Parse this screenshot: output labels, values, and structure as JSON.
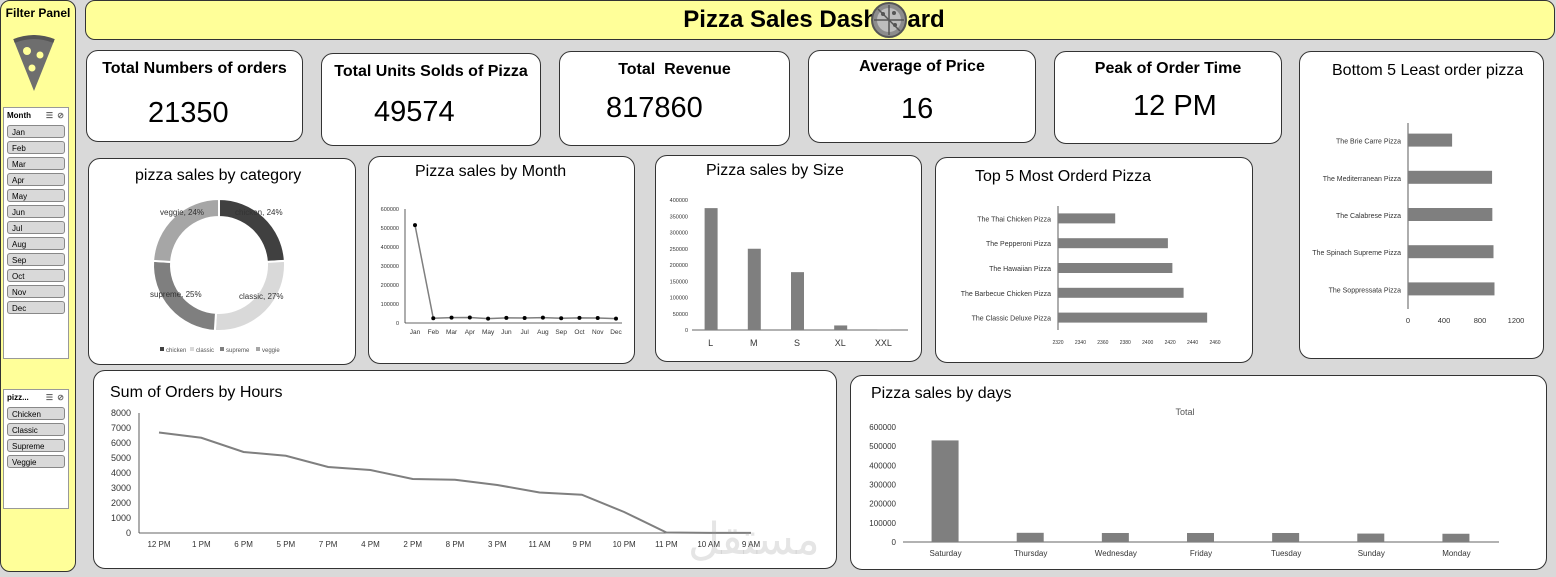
{
  "filter_panel": {
    "title": "Filter Panel",
    "icon": "pizza-slice-icon",
    "month_slicer": {
      "title": "Month",
      "items": [
        "Jan",
        "Feb",
        "Mar",
        "Apr",
        "May",
        "Jun",
        "Jul",
        "Aug",
        "Sep",
        "Oct",
        "Nov",
        "Dec"
      ]
    },
    "category_slicer": {
      "title": "pizz...",
      "items": [
        "Chicken",
        "Classic",
        "Supreme",
        "Veggie"
      ]
    }
  },
  "header": {
    "title": "Pizza Sales Dashboard",
    "icon": "pizza-icon",
    "bg_color": "#ffff99"
  },
  "kpis": [
    {
      "title": "Total Numbers of orders",
      "value": "21350"
    },
    {
      "title": "Total Units Solds of Pizza",
      "value": "49574"
    },
    {
      "title": "Total  Revenue",
      "value": "817860"
    },
    {
      "title": "Average of Price",
      "value": "16"
    },
    {
      "title": "Peak of Order Time",
      "value": "12 PM"
    }
  ],
  "watermark": "مستقل",
  "chart_data": [
    {
      "id": "category",
      "type": "pie",
      "title": "pizza sales by category",
      "categories": [
        "chicken",
        "classic",
        "supreme",
        "veggie"
      ],
      "values": [
        24,
        27,
        25,
        24
      ],
      "data_labels": [
        "chicken, 24%",
        "classic, 27%",
        "supreme, 25%",
        "veggie, 24%"
      ],
      "colors": [
        "#404040",
        "#d9d9d9",
        "#7f7f7f",
        "#a6a6a6"
      ],
      "legend": "bottom"
    },
    {
      "id": "month",
      "type": "line",
      "title": "Pizza sales by Month",
      "categories": [
        "Jan",
        "Feb",
        "Mar",
        "Apr",
        "May",
        "Jun",
        "Jul",
        "Aug",
        "Sep",
        "Oct",
        "Nov",
        "Dec"
      ],
      "values": [
        515000,
        25000,
        28000,
        29000,
        23000,
        27000,
        26000,
        28000,
        25000,
        27000,
        26000,
        23000
      ],
      "yticks": [
        "0",
        "100000",
        "200000",
        "300000",
        "400000",
        "500000",
        "600000"
      ],
      "ylim": [
        0,
        600000
      ]
    },
    {
      "id": "size",
      "type": "bar",
      "title": "Pizza sales by Size",
      "categories": [
        "L",
        "M",
        "S",
        "XL",
        "XXL"
      ],
      "values": [
        375000,
        250000,
        178000,
        14000,
        1000
      ],
      "yticks": [
        "0",
        "50000",
        "100000",
        "150000",
        "200000",
        "250000",
        "300000",
        "350000",
        "400000"
      ],
      "ylim": [
        0,
        400000
      ]
    },
    {
      "id": "top5",
      "type": "bar",
      "title": "Top 5 Most Orderd Pizza",
      "categories": [
        "The Thai Chicken Pizza",
        "The Pepperoni Pizza",
        "The Hawaiian Pizza",
        "The Barbecue Chicken Pizza",
        "The Classic Deluxe Pizza"
      ],
      "values": [
        2371,
        2418,
        2422,
        2432,
        2453
      ],
      "xticks": [
        "2320",
        "2340",
        "2360",
        "2380",
        "2400",
        "2420",
        "2440",
        "2460"
      ],
      "xlim": [
        2320,
        2460
      ],
      "extra_tick": "2"
    },
    {
      "id": "bottom5",
      "type": "bar",
      "title": "Bottom 5 Least order pizza",
      "categories": [
        "The Brie Carre Pizza",
        "The Mediterranean Pizza",
        "The Calabrese Pizza",
        "The Spinach Supreme Pizza",
        "The Soppressata Pizza"
      ],
      "values": [
        490,
        934,
        937,
        950,
        961
      ],
      "xticks": [
        "0",
        "400",
        "800",
        "1200"
      ],
      "xlim": [
        0,
        1200
      ]
    },
    {
      "id": "hours",
      "type": "line",
      "title": "Sum of Orders by Hours",
      "categories": [
        "12 PM",
        "1 PM",
        "6 PM",
        "5 PM",
        "7 PM",
        "4 PM",
        "2 PM",
        "8 PM",
        "3 PM",
        "11 AM",
        "9 PM",
        "10 PM",
        "11 PM",
        "10 AM",
        "9 AM"
      ],
      "values": [
        6700,
        6350,
        5400,
        5150,
        4400,
        4200,
        3600,
        3550,
        3200,
        2700,
        2550,
        1400,
        30,
        10,
        5
      ],
      "yticks": [
        "0",
        "1000",
        "2000",
        "3000",
        "4000",
        "5000",
        "6000",
        "7000",
        "8000"
      ],
      "ylim": [
        0,
        8000
      ]
    },
    {
      "id": "days",
      "type": "bar",
      "title": "Pizza sales by days",
      "series_label": "Total",
      "categories": [
        "Saturday",
        "Thursday",
        "Wednesday",
        "Friday",
        "Tuesday",
        "Sunday",
        "Monday"
      ],
      "values": [
        530000,
        48000,
        47000,
        47000,
        47000,
        44000,
        43000
      ],
      "yticks": [
        "0",
        "100000",
        "200000",
        "300000",
        "400000",
        "500000",
        "600000"
      ],
      "ylim": [
        0,
        600000
      ]
    }
  ]
}
